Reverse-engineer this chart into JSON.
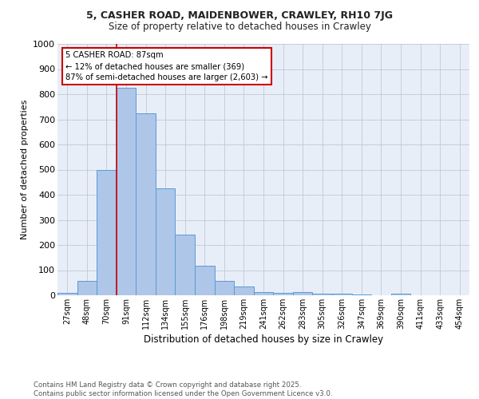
{
  "title1": "5, CASHER ROAD, MAIDENBOWER, CRAWLEY, RH10 7JG",
  "title2": "Size of property relative to detached houses in Crawley",
  "xlabel": "Distribution of detached houses by size in Crawley",
  "ylabel": "Number of detached properties",
  "bar_labels": [
    "27sqm",
    "48sqm",
    "70sqm",
    "91sqm",
    "112sqm",
    "134sqm",
    "155sqm",
    "176sqm",
    "198sqm",
    "219sqm",
    "241sqm",
    "262sqm",
    "283sqm",
    "305sqm",
    "326sqm",
    "347sqm",
    "369sqm",
    "390sqm",
    "411sqm",
    "433sqm",
    "454sqm"
  ],
  "bar_values": [
    8,
    57,
    500,
    825,
    725,
    425,
    240,
    118,
    57,
    35,
    12,
    8,
    12,
    5,
    5,
    3,
    0,
    5,
    0,
    0,
    0
  ],
  "bar_color": "#aec6e8",
  "bar_edge_color": "#5b9bd5",
  "vline_color": "#cc0000",
  "annotation_text": "5 CASHER ROAD: 87sqm\n← 12% of detached houses are smaller (369)\n87% of semi-detached houses are larger (2,603) →",
  "annotation_box_color": "#ffffff",
  "annotation_box_edge": "#cc0000",
  "ylim": [
    0,
    1000
  ],
  "yticks": [
    0,
    100,
    200,
    300,
    400,
    500,
    600,
    700,
    800,
    900,
    1000
  ],
  "background_color": "#e8eef8",
  "footer_text": "Contains HM Land Registry data © Crown copyright and database right 2025.\nContains public sector information licensed under the Open Government Licence v3.0.",
  "grid_color": "#c0c8d8"
}
